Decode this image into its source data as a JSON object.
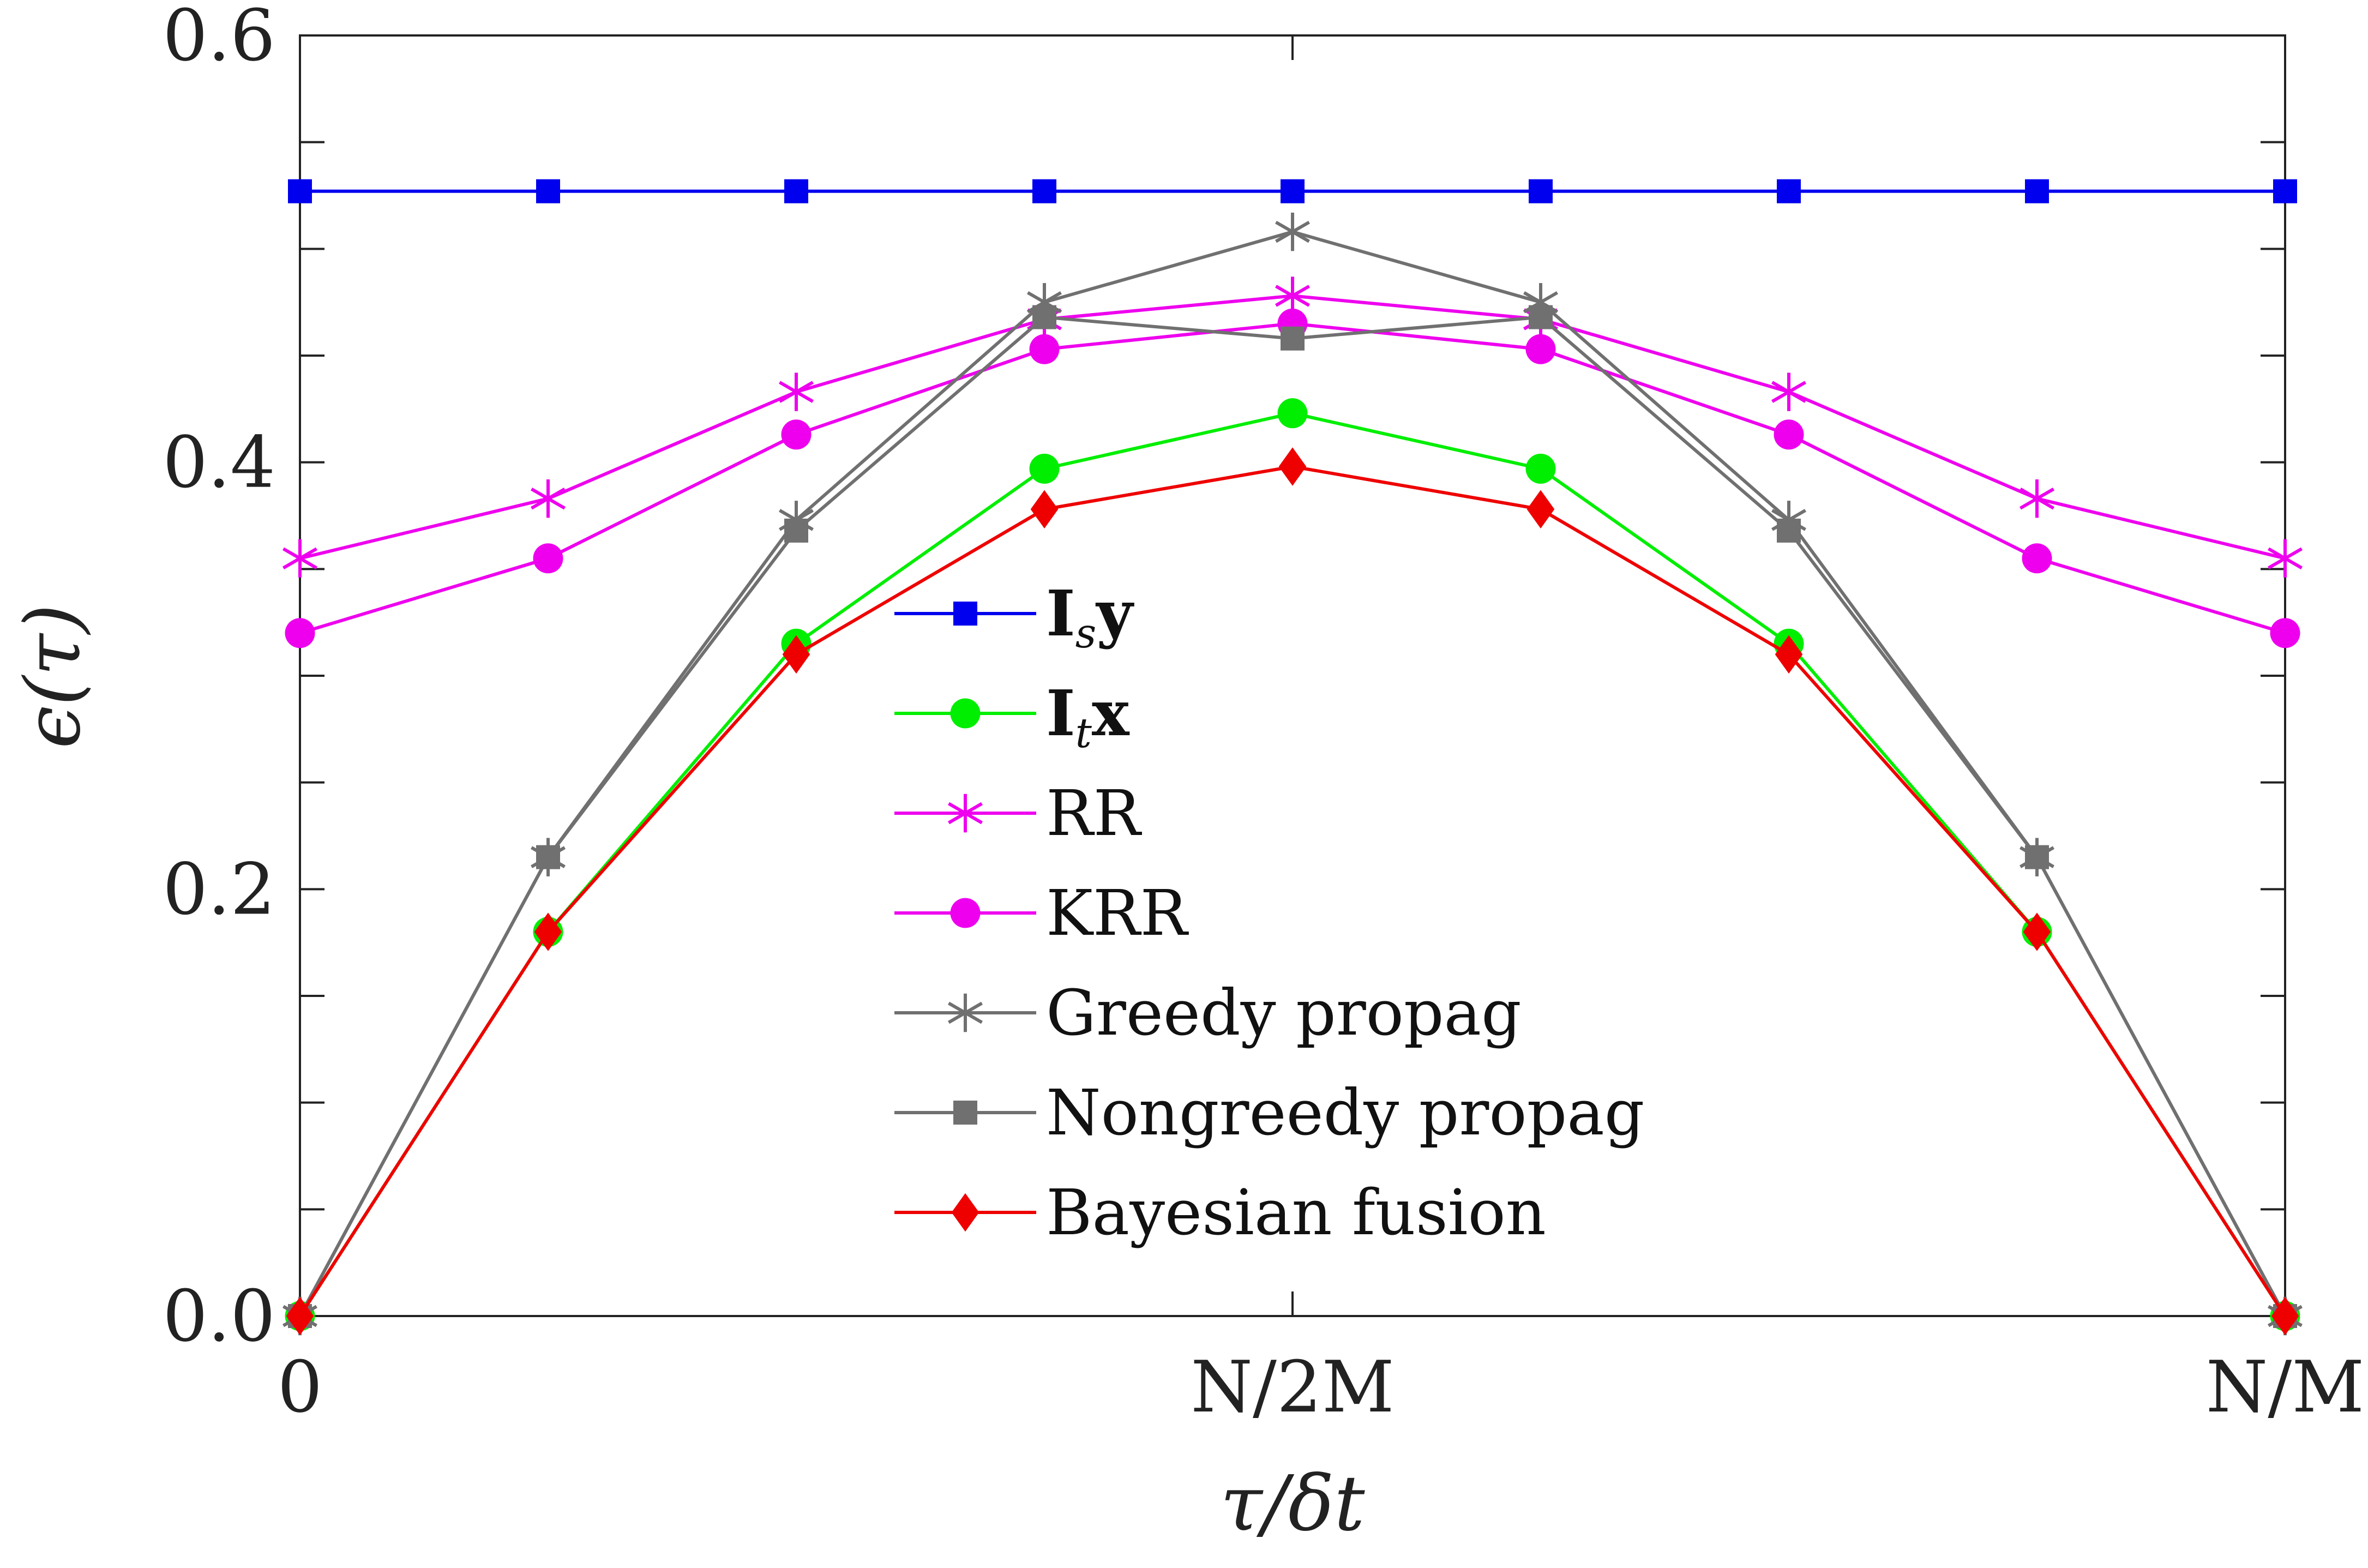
{
  "chart_data": {
    "type": "line",
    "title": "",
    "xlabel": "τ/δt",
    "ylabel": "ϵ(τ)",
    "ylim": [
      0,
      0.6
    ],
    "xlim": [
      0,
      8
    ],
    "x": [
      0,
      1,
      2,
      3,
      4,
      5,
      6,
      7,
      8
    ],
    "x_ticks": [
      {
        "value": 0,
        "label": "0"
      },
      {
        "value": 4,
        "label": "N/2M"
      },
      {
        "value": 8,
        "label": "N/M"
      }
    ],
    "y_ticks": [
      {
        "value": 0.0,
        "label": "0.0"
      },
      {
        "value": 0.2,
        "label": "0.2"
      },
      {
        "value": 0.4,
        "label": "0.4"
      },
      {
        "value": 0.6,
        "label": "0.6"
      }
    ],
    "y_minor_ticks": [
      0.05,
      0.1,
      0.15,
      0.25,
      0.3,
      0.35,
      0.45,
      0.5,
      0.55
    ],
    "grid": false,
    "legend_position": "center",
    "series": [
      {
        "name": "Isy",
        "legend_main": "I",
        "legend_sub": "s",
        "legend_tail": "y",
        "color": "#0000ee",
        "marker": "square",
        "values": [
          0.527,
          0.527,
          0.527,
          0.527,
          0.527,
          0.527,
          0.527,
          0.527,
          0.527
        ]
      },
      {
        "name": "Itx",
        "legend_main": "I",
        "legend_sub": "t",
        "legend_tail": "x",
        "color": "#00ee00",
        "marker": "circle",
        "values": [
          0.0,
          0.18,
          0.315,
          0.397,
          0.423,
          0.397,
          0.315,
          0.18,
          0.0
        ]
      },
      {
        "name": "RR",
        "color": "#ee00ee",
        "marker": "asterisk",
        "values": [
          0.355,
          0.383,
          0.433,
          0.467,
          0.478,
          0.467,
          0.433,
          0.383,
          0.355
        ]
      },
      {
        "name": "KRR",
        "color": "#ee00ee",
        "marker": "circle",
        "values": [
          0.32,
          0.355,
          0.413,
          0.453,
          0.465,
          0.453,
          0.413,
          0.355,
          0.32
        ]
      },
      {
        "name": "Greedy propag",
        "color": "#707070",
        "marker": "asterisk",
        "values": [
          0.0,
          0.215,
          0.373,
          0.475,
          0.508,
          0.475,
          0.373,
          0.215,
          0.0
        ]
      },
      {
        "name": "Nongreedy propag",
        "color": "#707070",
        "marker": "square",
        "values": [
          0.0,
          0.215,
          0.368,
          0.468,
          0.458,
          0.468,
          0.368,
          0.215,
          0.0
        ]
      },
      {
        "name": "Bayesian fusion",
        "color": "#ee0000",
        "marker": "diamond",
        "values": [
          0.0,
          0.18,
          0.31,
          0.378,
          0.398,
          0.378,
          0.31,
          0.18,
          0.0
        ]
      }
    ]
  }
}
